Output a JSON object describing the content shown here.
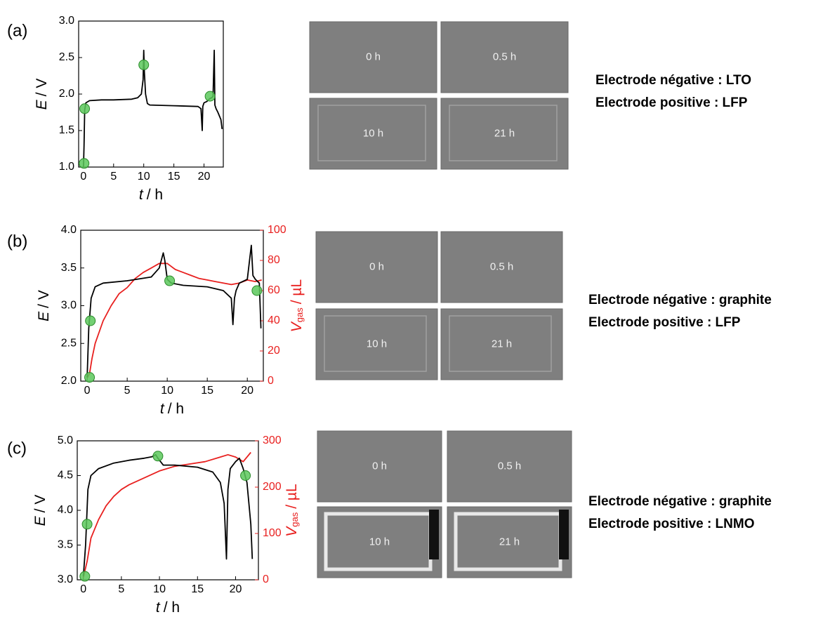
{
  "chart_data": [
    {
      "type": "line",
      "panel_label": "(a)",
      "xlabel": {
        "symbol": "t",
        "unit": "/ h"
      },
      "ylabel": {
        "symbol": "E",
        "unit": "/ V"
      },
      "xlim": [
        -0.8,
        23.2
      ],
      "xticks": [
        0,
        5,
        10,
        15,
        20
      ],
      "ylim": [
        1.0,
        3.0
      ],
      "yticks": [
        {
          "value": 1.0,
          "label": "1.0"
        },
        {
          "value": 1.5,
          "label": "1.5"
        },
        {
          "value": 2.0,
          "label": "2.0"
        },
        {
          "value": 2.5,
          "label": "2.5"
        },
        {
          "value": 3.0,
          "label": "3.0"
        }
      ],
      "series": [
        {
          "color": "#000000",
          "x": [
            0,
            0.1,
            0.2,
            0.4,
            1,
            3,
            5,
            8,
            9,
            9.6,
            9.9,
            10.0,
            10.1,
            10.3,
            10.6,
            11,
            15,
            19,
            19.5,
            19.7,
            19.8,
            20,
            20.5,
            21,
            21.3,
            21.5,
            21.7,
            21.8,
            22,
            22.3,
            22.8,
            23
          ],
          "values": [
            1.0,
            1.3,
            1.78,
            1.88,
            1.91,
            1.92,
            1.92,
            1.93,
            1.95,
            2.0,
            2.2,
            2.6,
            2.3,
            2.0,
            1.87,
            1.85,
            1.84,
            1.83,
            1.8,
            1.5,
            1.83,
            1.88,
            1.9,
            1.94,
            1.95,
            1.97,
            2.6,
            1.85,
            1.8,
            1.75,
            1.65,
            1.52
          ]
        }
      ],
      "markers": {
        "color": "#5cc85c",
        "x": [
          0.1,
          0.2,
          10,
          21
        ],
        "values": [
          1.05,
          1.8,
          2.4,
          1.97
        ]
      },
      "image_labels": [
        "0 h",
        "0.5 h",
        "10 h",
        "21 h"
      ],
      "electrodes": [
        "Electrode négative : LTO",
        "Electrode positive : LFP"
      ]
    },
    {
      "type": "line",
      "panel_label": "(b)",
      "xlabel": {
        "symbol": "t",
        "unit": "/ h"
      },
      "ylabel": {
        "symbol": "E",
        "unit": "/ V"
      },
      "y2label": {
        "symbol": "V",
        "subscript": "gas",
        "unit": "/ µL"
      },
      "y2color": "#e8201f",
      "xlim": [
        -0.8,
        22
      ],
      "xticks": [
        0,
        5,
        10,
        15,
        20
      ],
      "ylim": [
        2.0,
        4.0
      ],
      "yticks": [
        {
          "value": 2.0,
          "label": "2.0"
        },
        {
          "value": 2.5,
          "label": "2.5"
        },
        {
          "value": 3.0,
          "label": "3.0"
        },
        {
          "value": 3.5,
          "label": "3.5"
        },
        {
          "value": 4.0,
          "label": "4.0"
        }
      ],
      "y2lim": [
        0,
        100
      ],
      "y2ticks": [
        0,
        20,
        40,
        60,
        80,
        100
      ],
      "series": [
        {
          "color": "#000000",
          "x": [
            0,
            0.2,
            0.5,
            1,
            2,
            5,
            8,
            9,
            9.5,
            9.7,
            10,
            10.5,
            12,
            15,
            17,
            18,
            18.2,
            18.4,
            18.6,
            19,
            20,
            20.5,
            20.7,
            21,
            21.5,
            21.7
          ],
          "values": [
            2.05,
            2.7,
            3.1,
            3.25,
            3.3,
            3.33,
            3.38,
            3.5,
            3.7,
            3.6,
            3.35,
            3.3,
            3.27,
            3.25,
            3.2,
            3.1,
            2.75,
            3.1,
            3.2,
            3.3,
            3.35,
            3.8,
            3.4,
            3.35,
            3.3,
            2.7
          ]
        },
        {
          "color": "#e8201f",
          "axis": "y2",
          "x": [
            0,
            0.3,
            0.6,
            1,
            2,
            3,
            4,
            5,
            6,
            7,
            8,
            9,
            10,
            11,
            12,
            13,
            14,
            15,
            16,
            17,
            18,
            19,
            20,
            21,
            21.8
          ],
          "values": [
            2,
            5,
            15,
            25,
            40,
            50,
            58,
            62,
            68,
            72,
            75,
            78,
            78,
            74,
            72,
            70,
            68,
            67,
            66,
            65,
            64,
            65,
            67,
            66,
            67
          ]
        }
      ],
      "markers": {
        "color": "#5cc85c",
        "x": [
          0.3,
          0.4,
          10.3,
          21.2
        ],
        "values": [
          2.05,
          2.8,
          3.33,
          3.2
        ]
      },
      "image_labels": [
        "0 h",
        "0.5 h",
        "10 h",
        "21 h"
      ],
      "electrodes": [
        "Electrode négative : graphite",
        "Electrode positive : LFP"
      ]
    },
    {
      "type": "line",
      "panel_label": "(c)",
      "xlabel": {
        "symbol": "t",
        "unit": "/ h"
      },
      "ylabel": {
        "symbol": "E",
        "unit": "/ V"
      },
      "y2label": {
        "symbol": "V",
        "subscript": "gas",
        "unit": "/ µL"
      },
      "y2color": "#e8201f",
      "xlim": [
        -0.8,
        23
      ],
      "xticks": [
        0,
        5,
        10,
        15,
        20
      ],
      "ylim": [
        3.0,
        5.0
      ],
      "yticks": [
        {
          "value": 3.0,
          "label": "3.0"
        },
        {
          "value": 3.5,
          "label": "3.5"
        },
        {
          "value": 4.0,
          "label": "4.0"
        },
        {
          "value": 4.5,
          "label": "4.5"
        },
        {
          "value": 5.0,
          "label": "5.0"
        }
      ],
      "y2lim": [
        0,
        300
      ],
      "y2ticks": [
        0,
        100,
        200,
        300
      ],
      "series": [
        {
          "color": "#000000",
          "x": [
            0,
            0.3,
            0.6,
            1,
            2,
            4,
            6,
            8,
            9,
            9.5,
            9.8,
            10,
            10.5,
            12,
            15,
            17,
            18,
            18.5,
            18.8,
            19,
            19.3,
            20,
            20.5,
            21,
            21.5,
            22,
            22.2
          ],
          "values": [
            3.05,
            3.5,
            4.3,
            4.5,
            4.6,
            4.68,
            4.72,
            4.75,
            4.77,
            4.8,
            4.75,
            4.72,
            4.65,
            4.65,
            4.62,
            4.55,
            4.4,
            4.1,
            3.3,
            4.3,
            4.6,
            4.7,
            4.75,
            4.6,
            4.4,
            3.8,
            3.3
          ]
        },
        {
          "color": "#e8201f",
          "axis": "y2",
          "x": [
            0,
            0.5,
            1,
            2,
            3,
            4,
            5,
            6,
            8,
            10,
            12,
            14,
            16,
            18,
            19,
            20,
            21,
            22
          ],
          "values": [
            5,
            40,
            90,
            130,
            160,
            180,
            195,
            205,
            220,
            235,
            245,
            250,
            255,
            265,
            270,
            265,
            255,
            275
          ]
        }
      ],
      "markers": {
        "color": "#5cc85c",
        "x": [
          0.2,
          0.5,
          9.8,
          21.3
        ],
        "values": [
          3.05,
          3.8,
          4.78,
          4.5
        ]
      },
      "image_labels": [
        "0 h",
        "0.5 h",
        "10 h",
        "21 h"
      ],
      "electrodes": [
        "Electrode négative : graphite",
        "Electrode positive : LNMO"
      ]
    }
  ]
}
